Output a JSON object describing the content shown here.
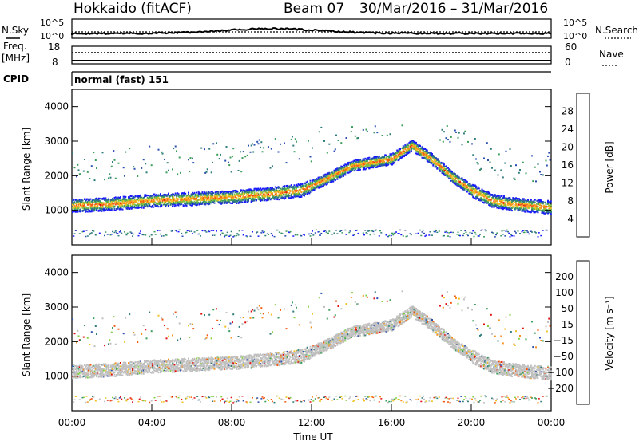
{
  "header": {
    "station": "Hokkaido (fitACF)",
    "beam": "Beam 07",
    "date_range": "30/Mar/2016 – 31/Mar/2016"
  },
  "noise_panel": {
    "left_label": "N.Sky",
    "left_ticks": [
      "10^5",
      "10^0"
    ],
    "right_label": "N.Search",
    "right_ticks": [
      "10^5",
      "10^0"
    ]
  },
  "freq_panel": {
    "label_line1": "Freq.",
    "label_line2": "[MHz]",
    "left_ticks": [
      "18",
      "8"
    ],
    "right_label": "Nave",
    "right_ticks": [
      "60",
      "0"
    ]
  },
  "cpid_panel": {
    "label": "CPID",
    "value": "normal (fast) 151"
  },
  "colors": {
    "power_scale": [
      "#1a1aff",
      "#2a4fb0",
      "#2e7d7a",
      "#3a9d5a",
      "#7ec23e",
      "#f0c020",
      "#f59a1e",
      "#f25a14",
      "#e01010"
    ],
    "velocity_scale": [
      "#e01010",
      "#f25a14",
      "#f5901e",
      "#f0c020",
      "#c0c0c0",
      "#c0c0c0",
      "#7fd040",
      "#3a9d5a",
      "#2e7d7a",
      "#2a4fb0"
    ]
  },
  "chart_data": [
    {
      "type": "heatmap",
      "title": "Power",
      "ylabel": "Slant Range [km]",
      "ylim": [
        0,
        4500
      ],
      "yticks": [
        "1000",
        "2000",
        "3000",
        "4000"
      ],
      "xticks": [
        "00:00",
        "04:00",
        "08:00",
        "12:00",
        "16:00",
        "20:00",
        "00:00"
      ],
      "colorbar_label": "Power [dB]",
      "colorbar_ticks": [
        "4",
        "8",
        "12",
        "16",
        "20",
        "24",
        "28"
      ],
      "series": [
        {
          "hours": [
            0,
            2,
            4,
            6,
            8,
            10,
            11.5
          ],
          "range_km": [
            1150,
            1200,
            1300,
            1350,
            1400,
            1500,
            1600
          ]
        },
        {
          "hours": [
            11.5,
            13,
            14,
            15,
            16,
            17,
            18,
            19,
            20,
            21,
            22,
            24
          ],
          "range_km": [
            1600,
            2000,
            2300,
            2400,
            2500,
            2900,
            2500,
            2000,
            1600,
            1300,
            1200,
            1100
          ]
        }
      ]
    },
    {
      "type": "heatmap",
      "title": "Velocity",
      "ylabel": "Slant Range [km]",
      "ylim": [
        0,
        4500
      ],
      "yticks": [
        "1000",
        "2000",
        "3000",
        "4000"
      ],
      "xticks": [
        "00:00",
        "04:00",
        "08:00",
        "12:00",
        "16:00",
        "20:00",
        "00:00"
      ],
      "xlabel": "Time UT",
      "colorbar_label": "Velocity [m s⁻¹]",
      "colorbar_ticks": [
        "200",
        "100",
        "50",
        "15",
        "−15",
        "−50",
        "−100",
        "−200"
      ]
    }
  ]
}
